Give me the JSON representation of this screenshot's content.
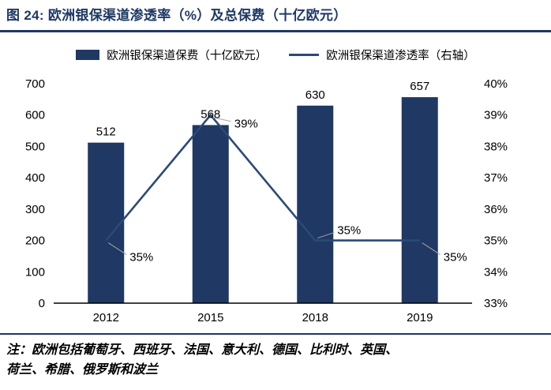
{
  "figure": {
    "title": "图 24:  欧洲银保渠道渗透率（%）及总保费（十亿欧元）",
    "note_line1": "注：欧洲包括葡萄牙、西班牙、法国、意大利、德国、比利时、英国、",
    "note_line2": "荷兰、希腊、俄罗斯和波兰"
  },
  "legend": [
    {
      "label": "欧洲银保渠道保费（十亿欧元）",
      "marker": "bar-swatch"
    },
    {
      "label": "欧洲银保渠道渗透率（右轴）",
      "marker": "line-swatch"
    }
  ],
  "colors": {
    "bar": "#1F3864",
    "line": "#2B4A77",
    "title": "#1F3864",
    "leader": "#A6A6A6",
    "axis": "#000000"
  },
  "chart_data": {
    "type": "bar",
    "subtype": "bar+line combo, dual axis",
    "categories": [
      "2012",
      "2015",
      "2018",
      "2019"
    ],
    "series": [
      {
        "name": "欧洲银保渠道保费（十亿欧元）",
        "type": "bar",
        "axis": "left",
        "values": [
          512,
          568,
          630,
          657
        ],
        "labels": [
          "512",
          "568",
          "630",
          "657"
        ]
      },
      {
        "name": "欧洲银保渠道渗透率（右轴）",
        "type": "line",
        "axis": "right",
        "values": [
          0.35,
          0.39,
          0.35,
          0.35
        ],
        "labels": [
          "35%",
          "39%",
          "35%",
          "35%"
        ]
      }
    ],
    "left_axis": {
      "min": 0,
      "max": 700,
      "step": 100,
      "ticks": [
        "0",
        "100",
        "200",
        "300",
        "400",
        "500",
        "600",
        "700"
      ]
    },
    "right_axis": {
      "min": 0.33,
      "max": 0.4,
      "step": 0.01,
      "ticks": [
        "33%",
        "34%",
        "35%",
        "36%",
        "37%",
        "38%",
        "39%",
        "40%"
      ]
    },
    "grid": false,
    "legend_position": "top",
    "line_label_positions": [
      "below-right",
      "right",
      "above-right",
      "below-right"
    ]
  }
}
